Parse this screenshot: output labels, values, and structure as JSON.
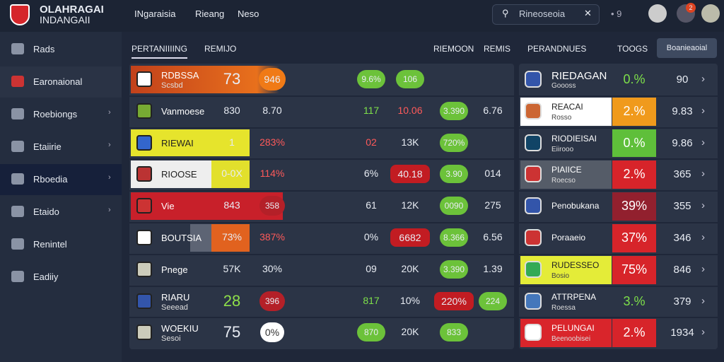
{
  "header": {
    "title": "OLAHRAGAI",
    "subtitle": "INDANGAII",
    "nav": [
      "INgaraisia",
      "Rieang",
      "Neso"
    ],
    "search": "Rineoseoia",
    "badge": "2"
  },
  "sidebar": [
    "Rads",
    "Earonaional",
    "Roebiongs",
    "Etaiirie",
    "Rboedia",
    "Etaido",
    "Renintel",
    "Eadiiy"
  ],
  "tabs": [
    "PERTANIIIING",
    "REMIJO",
    "RIEMOON",
    "REMIS",
    "PERANDNUES",
    "TOOGS"
  ],
  "button": "Boanieaoial",
  "left_rows": [
    {
      "name": "RDBSSA",
      "sub": "Scsbd",
      "cells": [
        "73",
        "946",
        "9.6%",
        "106"
      ]
    },
    {
      "name": "Vanmoese",
      "cells": [
        "830",
        "8.70",
        "117",
        "10.06",
        "3.390",
        "6.76"
      ]
    },
    {
      "name": "RIEWAI",
      "cells": [
        "1",
        "283%",
        "02",
        "13K",
        "720%"
      ]
    },
    {
      "name": "RIOOSE",
      "cells": [
        "0-0X",
        "114%",
        "6%",
        "40.18",
        "3.90",
        "014"
      ]
    },
    {
      "name": "Vie",
      "cells": [
        "843",
        "358",
        "61",
        "12K",
        "0090",
        "275"
      ]
    },
    {
      "name": "BOUTSIA",
      "cells": [
        "73%",
        "387%",
        "0%",
        "6682",
        "8.366",
        "6.56"
      ]
    },
    {
      "name": "Pnege",
      "cells": [
        "57K",
        "30%",
        "09",
        "20K",
        "3.390",
        "1.39"
      ]
    },
    {
      "name": "RIARU",
      "sub": "Seeead",
      "cells": [
        "28",
        "396",
        "817",
        "10%",
        "220%",
        "224"
      ]
    },
    {
      "name": "WOEKIU",
      "sub": "Sesoi",
      "cells": [
        "75",
        "0%",
        "870",
        "20K",
        "833"
      ]
    }
  ],
  "right_rows": [
    {
      "name": "RIEDAGAN",
      "sub": "Goooss",
      "pct": "0.%",
      "num": "90"
    },
    {
      "name": "REACAI",
      "sub": "Rosso",
      "pct": "2.%",
      "num": "9.83"
    },
    {
      "name": "RIODIEISAI",
      "sub": "Eiirooo",
      "pct": "0.%",
      "num": "9.86"
    },
    {
      "name": "PIAIICE",
      "sub": "Roecso",
      "pct": "2.%",
      "num": "365"
    },
    {
      "name": "Penobukana",
      "pct": "39%",
      "num": "355"
    },
    {
      "name": "Poraaeio",
      "pct": "37%",
      "num": "346"
    },
    {
      "name": "RUDESSEO",
      "sub": "Bosio",
      "pct": "75%",
      "num": "846"
    },
    {
      "name": "ATTRPENA",
      "sub": "Roessa",
      "pct": "3.%",
      "num": "379"
    },
    {
      "name": "PELUNGAI",
      "sub": "Beenoobisei",
      "pct": "2.%",
      "num": "1934"
    }
  ]
}
